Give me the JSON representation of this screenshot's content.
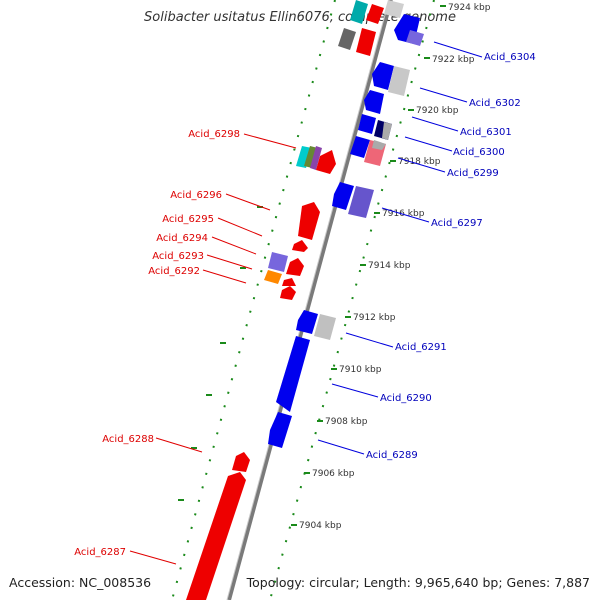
{
  "title": "Solibacter usitatus Ellin6076, complete genome",
  "accession": "Accession: NC_008536",
  "topology": "Topology: circular; Length: 9,965,640 bp; Genes: 7,887",
  "colors": {
    "forward_gene": "#ff0000",
    "reverse_gene": "#0000ff",
    "left_label": "#dd0000",
    "right_label": "#0000bb",
    "scale_tick": "#007700",
    "backbone": "#808080"
  },
  "scale_labels": [
    "7924 kbp",
    "7922 kbp",
    "7920 kbp",
    "7918 kbp",
    "7916 kbp",
    "7914 kbp",
    "7912 kbp",
    "7910 kbp",
    "7908 kbp",
    "7906 kbp",
    "7904 kbp"
  ],
  "left_labels": [
    "Acid_6298",
    "Acid_6296",
    "Acid_6295",
    "Acid_6294",
    "Acid_6293",
    "Acid_6292",
    "Acid_6288",
    "Acid_6287"
  ],
  "right_labels": [
    "Acid_6304",
    "Acid_6302",
    "Acid_6301",
    "Acid_6300",
    "Acid_6299",
    "Acid_6297",
    "Acid_6291",
    "Acid_6290",
    "Acid_6289"
  ]
}
